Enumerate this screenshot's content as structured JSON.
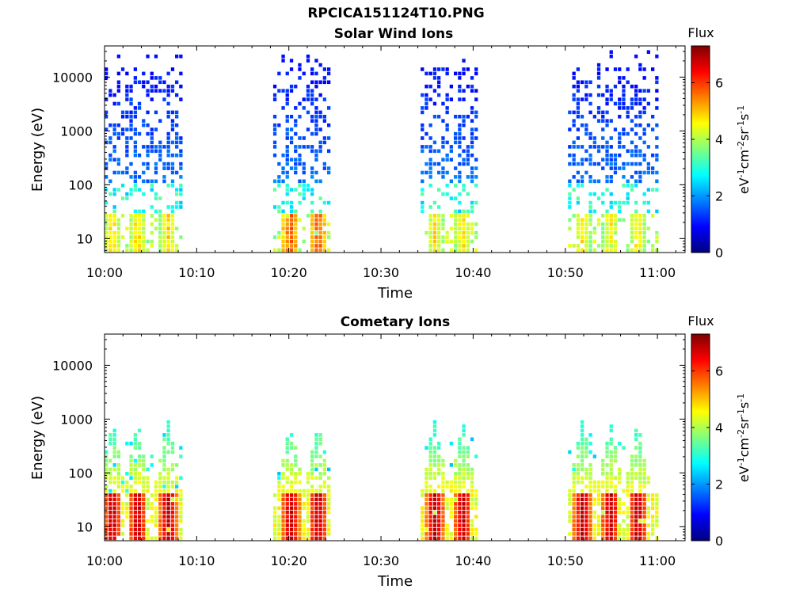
{
  "figure": {
    "title": "RPCICA151124T10.PNG"
  },
  "chart_data": [
    {
      "type": "heatmap",
      "title": "Solar Wind Ions",
      "xlabel": "Time",
      "ylabel": "Energy (eV)",
      "x_ticks": [
        "10:00",
        "10:10",
        "10:20",
        "10:30",
        "10:40",
        "10:50",
        "11:00"
      ],
      "xlim_minutes": [
        0,
        63
      ],
      "y_scale": "log",
      "y_ticks": [
        10,
        100,
        1000,
        10000
      ],
      "ylim": [
        5.5,
        38000
      ],
      "colorbar": {
        "title": "Flux",
        "label": "eV-1cm-2sr-1s-1",
        "ticks": [
          0,
          2,
          4,
          6
        ],
        "range": [
          0,
          7.3
        ],
        "colormap": "jet"
      },
      "bursts_minutes": [
        {
          "start": 0.0,
          "end": 8.5,
          "peaks": [
            0.7,
            3.4,
            6.7
          ],
          "peak_flux": 4.6
        },
        {
          "start": 18.3,
          "end": 24.3,
          "peaks": [
            20.0,
            23.0
          ],
          "peak_flux": 5.5
        },
        {
          "start": 34.3,
          "end": 40.4,
          "peaks": [
            35.7,
            38.7
          ],
          "peak_flux": 4.5
        },
        {
          "start": 50.3,
          "end": 59.9,
          "peaks": [
            51.7,
            54.7,
            57.7
          ],
          "peak_flux": 4.5
        }
      ],
      "flux_low_energy": 4.5,
      "flux_high_energy": 1.5
    },
    {
      "type": "heatmap",
      "title": "Cometary Ions",
      "xlabel": "Time",
      "ylabel": "Energy (eV)",
      "x_ticks": [
        "10:00",
        "10:10",
        "10:20",
        "10:30",
        "10:40",
        "10:50",
        "11:00"
      ],
      "xlim_minutes": [
        0,
        63
      ],
      "y_scale": "log",
      "y_ticks": [
        10,
        100,
        1000,
        10000
      ],
      "ylim": [
        5.5,
        38000
      ],
      "colorbar": {
        "title": "Flux",
        "label": "eV-1cm-2sr-1s-1",
        "ticks": [
          0,
          2,
          4,
          6
        ],
        "range": [
          0,
          7.3
        ],
        "colormap": "jet"
      },
      "bursts_minutes": [
        {
          "start": 0.0,
          "end": 8.5,
          "peaks": [
            0.7,
            3.4,
            6.7
          ],
          "peak_flux": 6.8
        },
        {
          "start": 18.3,
          "end": 24.3,
          "peaks": [
            20.0,
            23.0
          ],
          "peak_flux": 6.8
        },
        {
          "start": 34.3,
          "end": 40.4,
          "peaks": [
            35.7,
            38.7
          ],
          "peak_flux": 6.8
        },
        {
          "start": 50.3,
          "end": 59.9,
          "peaks": [
            51.7,
            54.7,
            57.7
          ],
          "peak_flux": 6.8
        }
      ],
      "flux_low_energy": 6.5,
      "flux_high_energy": 2.5
    }
  ]
}
